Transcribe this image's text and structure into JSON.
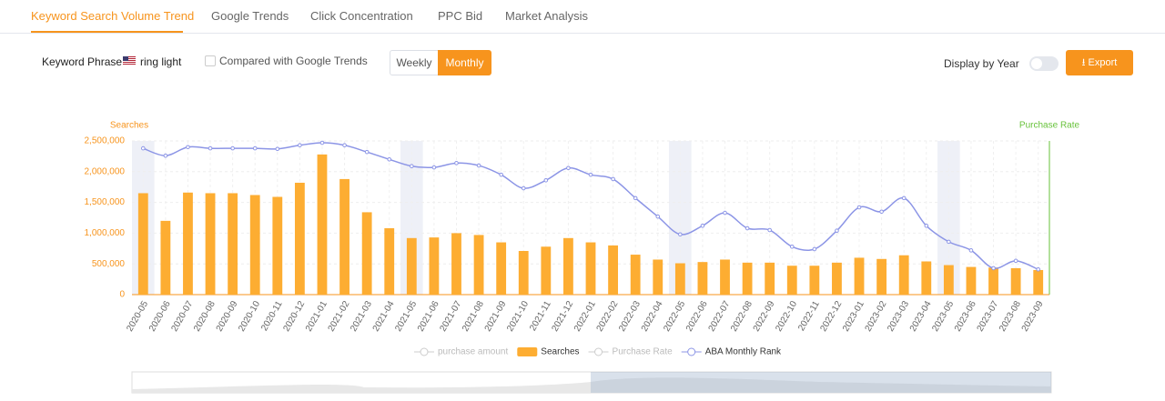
{
  "tabs": [
    "Keyword Search Volume Trend",
    "Google Trends",
    "Click Concentration",
    "PPC Bid",
    "Market Analysis"
  ],
  "controls": {
    "keyword_label": "Keyword Phrase:",
    "keyword": "ring light",
    "compare": "Compared with Google Trends",
    "weekly": "Weekly",
    "monthly": "Monthly",
    "display_by_year": "Display by Year",
    "export": "Export"
  },
  "chart_data": {
    "type": "combo",
    "y_label": "Searches",
    "y2_label": "Purchase Rate",
    "categories": [
      "2020-05",
      "2020-06",
      "2020-07",
      "2020-08",
      "2020-09",
      "2020-10",
      "2020-11",
      "2020-12",
      "2021-01",
      "2021-02",
      "2021-03",
      "2021-04",
      "2021-05",
      "2021-06",
      "2021-07",
      "2021-08",
      "2021-09",
      "2021-10",
      "2021-11",
      "2021-12",
      "2022-01",
      "2022-02",
      "2022-03",
      "2022-04",
      "2022-05",
      "2022-06",
      "2022-07",
      "2022-08",
      "2022-09",
      "2022-10",
      "2022-11",
      "2022-12",
      "2023-01",
      "2023-02",
      "2023-03",
      "2023-04",
      "2023-05",
      "2023-06",
      "2023-07",
      "2023-08",
      "2023-09"
    ],
    "ylim": [
      0,
      2500000
    ],
    "yticks": [
      0,
      {
        "value": 500000,
        "label": "500,000"
      },
      {
        "value": 1000000,
        "label": "1,000,000"
      },
      {
        "value": 1500000,
        "label": "1,500,000"
      },
      {
        "value": 2000000,
        "label": "2,000,000"
      },
      {
        "value": 2500000,
        "label": "2,500,000"
      }
    ],
    "grid": true,
    "series": [
      {
        "name": "purchase amount",
        "visible": false,
        "color": "#cccccc"
      },
      {
        "name": "Searches",
        "type": "bar",
        "visible": true,
        "color": "#fdad32",
        "values": [
          1650000,
          1200000,
          1660000,
          1650000,
          1650000,
          1620000,
          1590000,
          1820000,
          2280000,
          1880000,
          1340000,
          1080000,
          920000,
          930000,
          1000000,
          970000,
          850000,
          710000,
          780000,
          920000,
          850000,
          800000,
          650000,
          570000,
          510000,
          530000,
          570000,
          520000,
          520000,
          470000,
          470000,
          520000,
          600000,
          580000,
          640000,
          540000,
          480000,
          450000,
          440000,
          430000,
          400000
        ]
      },
      {
        "name": "Purchase Rate",
        "visible": false,
        "color": "#cccccc"
      },
      {
        "name": "ABA Monthly Rank",
        "type": "line",
        "visible": true,
        "color": "#8c95e6",
        "values": [
          2380000,
          2260000,
          2400000,
          2380000,
          2380000,
          2380000,
          2370000,
          2430000,
          2470000,
          2430000,
          2320000,
          2200000,
          2090000,
          2070000,
          2140000,
          2100000,
          1950000,
          1730000,
          1860000,
          2060000,
          1950000,
          1880000,
          1570000,
          1270000,
          980000,
          1120000,
          1330000,
          1080000,
          1050000,
          780000,
          740000,
          1040000,
          1420000,
          1350000,
          1570000,
          1120000,
          860000,
          720000,
          430000,
          550000,
          410000
        ]
      }
    ]
  }
}
